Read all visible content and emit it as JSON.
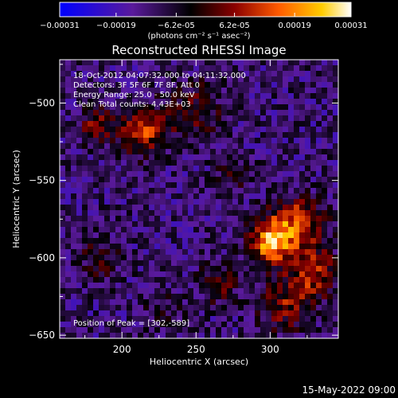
{
  "chart_data": {
    "type": "heatmap",
    "title": "Reconstructed RHESSI Image",
    "xlabel": "Heliocentric X (arcsec)",
    "ylabel": "Heliocentric Y (arcsec)",
    "xlim": [
      158,
      346
    ],
    "ylim": [
      -652,
      -472
    ],
    "x_ticks": [
      200,
      250,
      300
    ],
    "y_ticks": [
      -500,
      -550,
      -600,
      -650
    ],
    "annotations": [
      "18-Oct-2012 04:07:32.000 to 04:11:32.000",
      "Detectors: 3F 5F 6F 7F 8F, Att 0",
      "Energy Range: 25.0 - 50.0 keV",
      "Clean     Total counts: 4.43E+03"
    ],
    "peak_label": "Position of Peak = [302,-589]",
    "peak_position": [
      302,
      -589
    ],
    "colorbar": {
      "range": [
        -0.00031,
        0.00031
      ],
      "tick_labels": [
        "-0.00031",
        "-0.00019",
        "-6.2e-05",
        "6.2e-05",
        "0.00019",
        "0.00031"
      ],
      "tick_values": [
        -0.00031,
        -0.00019,
        -6.2e-05,
        6.2e-05,
        0.00019,
        0.00031
      ],
      "unit_label": "(photons cm⁻² s⁻¹ asec⁻²)",
      "colors": [
        "#0000ff",
        "#5a1a9c",
        "#000000",
        "#8a0000",
        "#ff5a00",
        "#ffcc00",
        "#ffffff"
      ]
    },
    "sources": [
      {
        "x": 215,
        "y": -518,
        "sigma": 11,
        "amp": 0.00022
      },
      {
        "x": 183,
        "y": -515,
        "sigma": 9,
        "amp": 0.00014
      },
      {
        "x": 250,
        "y": -505,
        "sigma": 13,
        "amp": 0.00012
      },
      {
        "x": 318,
        "y": -578,
        "sigma": 12,
        "amp": 0.00024
      },
      {
        "x": 300,
        "y": -590,
        "sigma": 10,
        "amp": 0.00031
      },
      {
        "x": 330,
        "y": -610,
        "sigma": 11,
        "amp": 0.0002
      },
      {
        "x": 310,
        "y": -630,
        "sigma": 12,
        "amp": 0.00016
      },
      {
        "x": 185,
        "y": -600,
        "sigma": 10,
        "amp": 0.0001
      },
      {
        "x": 265,
        "y": -615,
        "sigma": 10,
        "amp": 0.00012
      },
      {
        "x": 228,
        "y": -635,
        "sigma": 9,
        "amp": 7e-05
      },
      {
        "x": 275,
        "y": -545,
        "sigma": 9,
        "amp": 8e-05
      }
    ],
    "background": -0.00012
  },
  "footer": {
    "timestamp": "15-May-2022 09:00"
  }
}
